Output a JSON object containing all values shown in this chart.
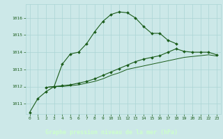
{
  "title": "Graphe pression niveau de la mer (hPa)",
  "background_color": "#cce8e8",
  "label_bg_color": "#336633",
  "label_text_color": "#ccffcc",
  "grid_color": "#aad4d4",
  "line_color": "#1a5c1a",
  "line1_x": [
    0,
    1,
    2,
    3,
    4,
    5,
    6,
    7,
    8,
    9,
    10,
    11,
    12,
    13,
    14,
    15,
    16,
    17,
    18
  ],
  "line1_y": [
    1010.5,
    1011.3,
    1011.7,
    1012.0,
    1013.3,
    1013.9,
    1014.0,
    1014.5,
    1015.2,
    1015.8,
    1016.2,
    1016.35,
    1016.3,
    1016.0,
    1015.5,
    1015.1,
    1015.1,
    1014.7,
    1014.5
  ],
  "line2_x": [
    2,
    3,
    4,
    5,
    6,
    7,
    8,
    9,
    10,
    11,
    12,
    13,
    14,
    15,
    16,
    17,
    18,
    19,
    20,
    21,
    22,
    23
  ],
  "line2_y": [
    1011.95,
    1012.0,
    1012.05,
    1012.1,
    1012.2,
    1012.3,
    1012.45,
    1012.65,
    1012.85,
    1013.05,
    1013.25,
    1013.45,
    1013.6,
    1013.7,
    1013.8,
    1014.0,
    1014.2,
    1014.05,
    1014.0,
    1014.0,
    1014.0,
    1013.85
  ],
  "line3_x": [
    2,
    3,
    4,
    5,
    6,
    7,
    8,
    9,
    10,
    11,
    12,
    13,
    14,
    15,
    16,
    17,
    18,
    19,
    20,
    21,
    22,
    23
  ],
  "line3_y": [
    1011.95,
    1012.0,
    1012.0,
    1012.05,
    1012.1,
    1012.2,
    1012.3,
    1012.45,
    1012.65,
    1012.8,
    1013.0,
    1013.1,
    1013.2,
    1013.3,
    1013.4,
    1013.5,
    1013.6,
    1013.7,
    1013.75,
    1013.8,
    1013.85,
    1013.78
  ],
  "ylim": [
    1010.4,
    1016.8
  ],
  "yticks": [
    1011,
    1012,
    1013,
    1014,
    1015,
    1016
  ],
  "xlim": [
    -0.5,
    23.5
  ],
  "xticks": [
    0,
    1,
    2,
    3,
    4,
    5,
    6,
    7,
    8,
    9,
    10,
    11,
    12,
    13,
    14,
    15,
    16,
    17,
    18,
    19,
    20,
    21,
    22,
    23
  ]
}
